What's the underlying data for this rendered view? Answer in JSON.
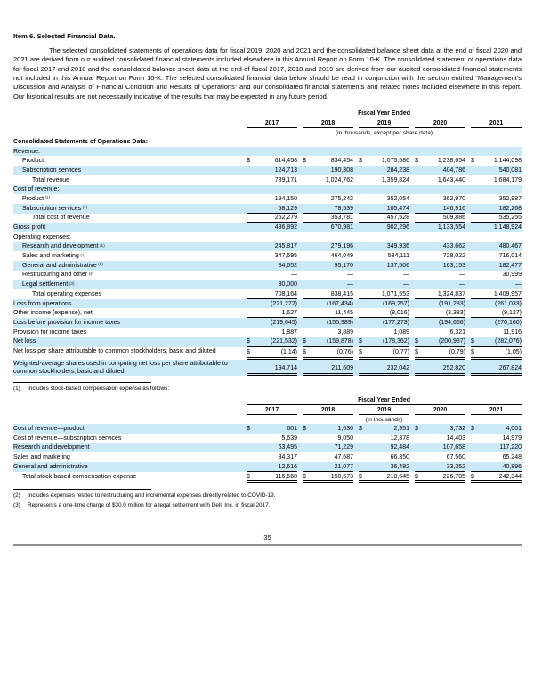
{
  "page": {
    "title": "Item 6. Selected Financial Data.",
    "intro": "The selected consolidated statements of operations data for fiscal 2019, 2020 and 2021 and the consolidated balance sheet data at the end of fiscal 2020 and 2021 are derived from our audited consolidated financial statements included elsewhere in this Annual Report on Form 10-K. The consolidated statement of operations data for fiscal 2017 and 2018 and the consolidated balance sheet data at the end of fiscal 2017, 2018 and 2019 are derived from our audited consolidated financial statements not included in this Annual Report on Form 10-K. The selected consolidated financial data below should be read in conjunction with the section entitled “Management’s Discussion and Analysis of Financial Condition and Results of Operations” and our consolidated financial statements and related notes included elsewhere in this report. Our historical results are not necessarily indicative of the results that may be expected in any future period.",
    "page_number": "35",
    "shading_color": "#cce9f8"
  },
  "table1": {
    "header": {
      "caption": "Fiscal Year Ended",
      "years": [
        "2017",
        "2018",
        "2019",
        "2020",
        "2021"
      ],
      "units": "(in thousands, except per share data)"
    },
    "rows": [
      {
        "label": "Consolidated Statements of Operations Data:",
        "bold": true,
        "indent": 0,
        "shaded": false
      },
      {
        "label": "Revenue:",
        "indent": 0,
        "shaded": true
      },
      {
        "label": "Product",
        "indent": 1,
        "dollar": true,
        "values": [
          "614,458",
          "834,454",
          "1,075,586",
          "1,238,654",
          "1,144,098"
        ]
      },
      {
        "label": "Subscription services",
        "indent": 1,
        "shaded": true,
        "rule": "s",
        "values": [
          "124,713",
          "190,308",
          "284,238",
          "404,786",
          "540,081"
        ]
      },
      {
        "label": "Total revenue",
        "indent": 2,
        "values": [
          "739,171",
          "1,024,762",
          "1,359,824",
          "1,643,440",
          "1,684,179"
        ]
      },
      {
        "label": "Cost of revenue:",
        "shaded": true
      },
      {
        "label": "Product",
        "sup": "(1)",
        "indent": 1,
        "values": [
          "194,150",
          "275,242",
          "352,054",
          "362,970",
          "352,987"
        ]
      },
      {
        "label": "Subscription services",
        "sup": "(1)",
        "indent": 1,
        "shaded": true,
        "rule": "s",
        "values": [
          "58,129",
          "78,539",
          "105,474",
          "146,916",
          "182,268"
        ]
      },
      {
        "label": "Total cost of revenue",
        "indent": 2,
        "rule": "s",
        "values": [
          "252,279",
          "353,781",
          "457,528",
          "509,886",
          "535,255"
        ]
      },
      {
        "label": "Gross profit",
        "shaded": true,
        "rule": "s",
        "values": [
          "486,892",
          "670,981",
          "902,296",
          "1,133,554",
          "1,148,924"
        ]
      },
      {
        "label": "Operating expenses:"
      },
      {
        "label": "Research and development",
        "sup": "(1)",
        "indent": 1,
        "shaded": true,
        "values": [
          "245,817",
          "279,196",
          "349,936",
          "433,662",
          "480,467"
        ]
      },
      {
        "label": "Sales and marketing",
        "sup": "(1)",
        "indent": 1,
        "values": [
          "347,695",
          "464,049",
          "584,111",
          "728,022",
          "716,014"
        ]
      },
      {
        "label": "General and administrative",
        "sup": "(1)",
        "indent": 1,
        "shaded": true,
        "values": [
          "84,652",
          "95,170",
          "137,506",
          "163,153",
          "182,477"
        ]
      },
      {
        "label": "Restructuring and other",
        "sup": "(2)",
        "indent": 1,
        "values": [
          "—",
          "—",
          "—",
          "—",
          "30,999"
        ]
      },
      {
        "label": "Legal settlement",
        "sup": "(3)",
        "indent": 1,
        "shaded": true,
        "rule": "s",
        "values": [
          "30,000",
          "—",
          "—",
          "—",
          "—"
        ]
      },
      {
        "label": "Total operating expenses",
        "indent": 2,
        "rule": "s",
        "values": [
          "708,164",
          "838,415",
          "1,071,553",
          "1,324,837",
          "1,409,957"
        ]
      },
      {
        "label": "Loss from operations",
        "shaded": true,
        "values": [
          "(221,272)",
          "(167,434)",
          "(169,257)",
          "(191,283)",
          "(261,033)"
        ]
      },
      {
        "label": "Other income (expense), net",
        "rule": "s",
        "values": [
          "1,627",
          "11,445",
          "(8,016)",
          "(3,383)",
          "(9,127)"
        ]
      },
      {
        "label": "Loss before provision for income taxes",
        "shaded": true,
        "values": [
          "(219,645)",
          "(155,989)",
          "(177,273)",
          "(194,666)",
          "(270,160)"
        ]
      },
      {
        "label": "Provision for income taxes",
        "rule": "s",
        "values": [
          "1,887",
          "3,889",
          "1,089",
          "6,321",
          "11,916"
        ]
      },
      {
        "label": "Net loss",
        "shaded": true,
        "dollar": true,
        "rule": "d",
        "values": [
          "(221,532)",
          "(159,878)",
          "(178,362)",
          "(200,987)",
          "(282,076)"
        ]
      },
      {
        "label": "Net loss per share attributable to common stockholders, basic and diluted",
        "dollar": true,
        "rule": "d",
        "wrap": true,
        "values": [
          "(1.14)",
          "(0.76)",
          "(0.77)",
          "(0.79)",
          "(1.05)"
        ]
      },
      {
        "label": "Weighted-average shares used in computing net loss per share attributable to common stockholders, basic and diluted",
        "shaded": true,
        "rule": "d",
        "wrap": true,
        "values": [
          "194,714",
          "211,609",
          "232,042",
          "252,820",
          "267,824"
        ]
      }
    ]
  },
  "footnote1": {
    "marker": "(1)",
    "text": "Includes stock-based compensation expense as follows:"
  },
  "table2": {
    "header": {
      "caption": "Fiscal Year Ended",
      "years": [
        "2017",
        "2018",
        "2019",
        "2020",
        "2021"
      ],
      "units": "(in thousands)"
    },
    "rows": [
      {
        "label": "Cost of revenue—product",
        "shaded": true,
        "dollar": true,
        "values": [
          "601",
          "1,630",
          "2,951",
          "3,732",
          "4,001"
        ]
      },
      {
        "label": "Cost of revenue—subscription services",
        "values": [
          "5,639",
          "9,050",
          "12,378",
          "14,403",
          "14,979"
        ]
      },
      {
        "label": "Research and development",
        "shaded": true,
        "values": [
          "63,495",
          "71,229",
          "92,484",
          "107,658",
          "117,220"
        ]
      },
      {
        "label": "Sales and marketing",
        "values": [
          "34,317",
          "47,687",
          "66,350",
          "67,560",
          "65,248"
        ]
      },
      {
        "label": "General and administrative",
        "shaded": true,
        "rule": "s",
        "values": [
          "12,616",
          "21,077",
          "36,482",
          "33,352",
          "40,896"
        ]
      },
      {
        "label": "Total stock-based compensation expense",
        "indent": 1,
        "dollar": true,
        "rule": "d",
        "values": [
          "116,668",
          "150,673",
          "210,645",
          "226,705",
          "242,344"
        ]
      }
    ]
  },
  "footnotes": [
    {
      "marker": "(2)",
      "text": "Includes expenses related to restructuring and incremental expenses directly related to COVID-19."
    },
    {
      "marker": "(3)",
      "text": "Represents a one-time charge of $30.0 million for a legal settlement with Dell, Inc. in fiscal 2017."
    }
  ]
}
